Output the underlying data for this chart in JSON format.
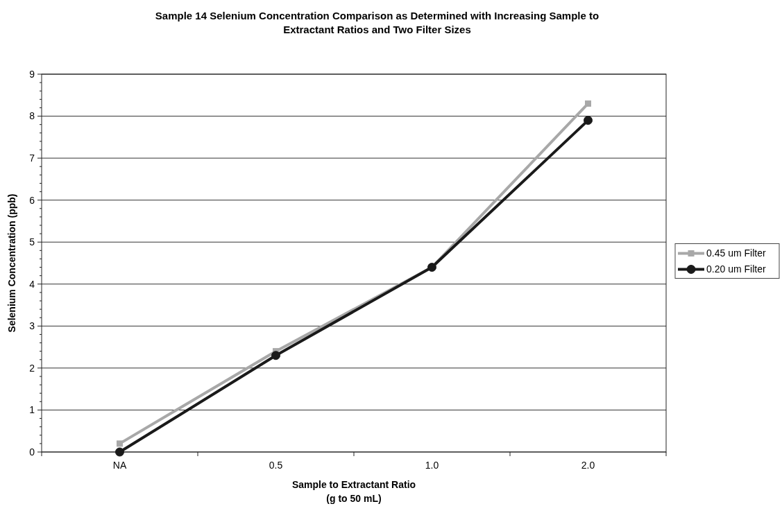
{
  "chart_data": {
    "type": "line",
    "title": "Sample 14 Selenium Concentration Comparison as Determined with Increasing Sample to\nExtractant Ratios and Two Filter Sizes",
    "xlabel": "Sample to Extractant Ratio\n(g to 50 mL)",
    "ylabel": "Selenium Concentration (ppb)",
    "categories": [
      "NA",
      "0.5",
      "1.0",
      "2.0"
    ],
    "series": [
      {
        "name": "0.45 um Filter",
        "color": "#a8a8a8",
        "marker": "square",
        "values": [
          0.2,
          2.4,
          4.4,
          8.3
        ]
      },
      {
        "name": "0.20 um Filter",
        "color": "#1a1a1a",
        "marker": "circle",
        "values": [
          0.0,
          2.3,
          4.4,
          7.9
        ]
      }
    ],
    "ylim": [
      0,
      9
    ],
    "yticks": [
      0,
      {
        "value": 0.2,
        "label": null
      },
      {
        "value": 0.4,
        "label": null
      },
      {
        "value": 0.6,
        "label": null
      },
      {
        "value": 0.8,
        "label": null
      },
      1,
      {
        "value": 1.2,
        "label": null
      },
      {
        "value": 1.4,
        "label": null
      },
      {
        "value": 1.6,
        "label": null
      },
      {
        "value": 1.8,
        "label": null
      },
      2,
      {
        "value": 2.2,
        "label": null
      },
      {
        "value": 2.4,
        "label": null
      },
      {
        "value": 2.6,
        "label": null
      },
      {
        "value": 2.8,
        "label": null
      },
      3,
      {
        "value": 3.2,
        "label": null
      },
      {
        "value": 3.4,
        "label": null
      },
      {
        "value": 3.6,
        "label": null
      },
      {
        "value": 3.8,
        "label": null
      },
      4,
      {
        "value": 4.2,
        "label": null
      },
      {
        "value": 4.4,
        "label": null
      },
      {
        "value": 4.6,
        "label": null
      },
      {
        "value": 4.8,
        "label": null
      },
      5,
      {
        "value": 5.2,
        "label": null
      },
      {
        "value": 5.4,
        "label": null
      },
      {
        "value": 5.6,
        "label": null
      },
      {
        "value": 5.8,
        "label": null
      },
      6,
      {
        "value": 6.2,
        "label": null
      },
      {
        "value": 6.4,
        "label": null
      },
      {
        "value": 6.6,
        "label": null
      },
      {
        "value": 6.8,
        "label": null
      },
      7,
      {
        "value": 7.2,
        "label": null
      },
      {
        "value": 7.4,
        "label": null
      },
      {
        "value": 7.6,
        "label": null
      },
      {
        "value": 7.8,
        "label": null
      },
      8,
      {
        "value": 8.2,
        "label": null
      },
      {
        "value": 8.4,
        "label": null
      },
      {
        "value": 8.6,
        "label": null
      },
      {
        "value": 8.8,
        "label": null
      },
      9
    ],
    "grid": "y",
    "legend": "right",
    "line_style": "solid"
  }
}
